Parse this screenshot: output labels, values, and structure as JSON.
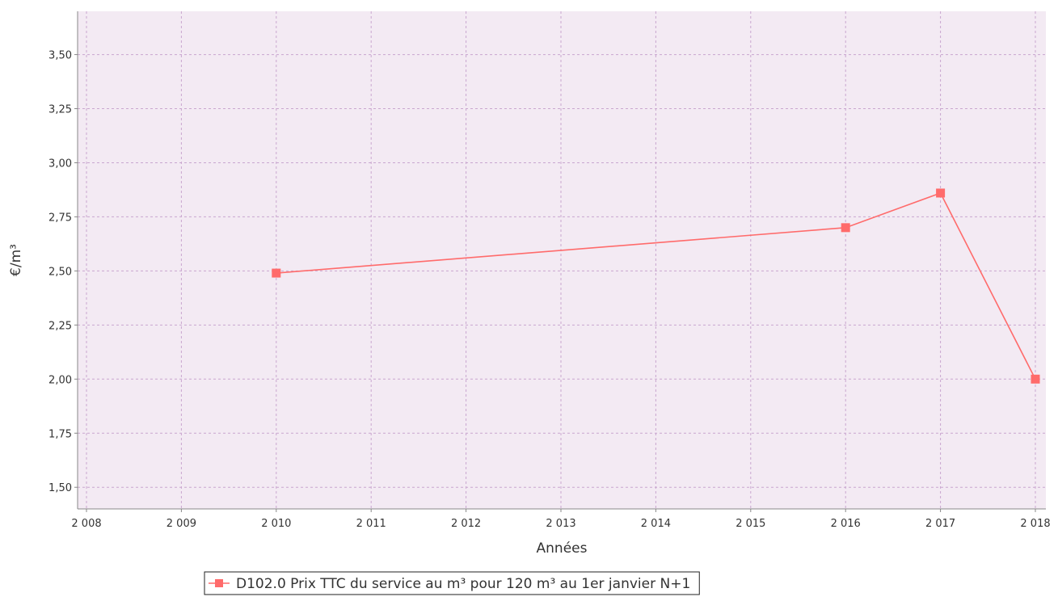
{
  "chart_data": {
    "type": "line",
    "title": "",
    "xlabel": "Années",
    "ylabel": "€/m³",
    "xlim": [
      2008,
      2018
    ],
    "ylim": [
      1.4,
      3.7
    ],
    "x_ticks": [
      2008,
      2009,
      2010,
      2011,
      2012,
      2013,
      2014,
      2015,
      2016,
      2017,
      2018
    ],
    "x_tick_labels": [
      "2 008",
      "2 009",
      "2 010",
      "2 011",
      "2 012",
      "2 013",
      "2 014",
      "2 015",
      "2 016",
      "2 017",
      "2 018"
    ],
    "y_ticks": [
      1.5,
      1.75,
      2.0,
      2.25,
      2.5,
      2.75,
      3.0,
      3.25,
      3.5
    ],
    "y_tick_labels": [
      "1,50",
      "1,75",
      "2,00",
      "2,25",
      "2,50",
      "2,75",
      "3,00",
      "3,25",
      "3,50"
    ],
    "grid": true,
    "legend_position": "bottom",
    "series": [
      {
        "name": "D102.0 Prix TTC du service au m³ pour 120 m³ au 1er janvier N+1",
        "color": "#ff6b6b",
        "marker": "square",
        "x": [
          2010,
          2016,
          2017,
          2018
        ],
        "y": [
          2.49,
          2.7,
          2.86,
          2.0
        ]
      }
    ],
    "colors": {
      "plot_background": "#f3eaf3",
      "grid": "#c9a6cf",
      "axis": "#888888",
      "text": "#333333"
    }
  }
}
